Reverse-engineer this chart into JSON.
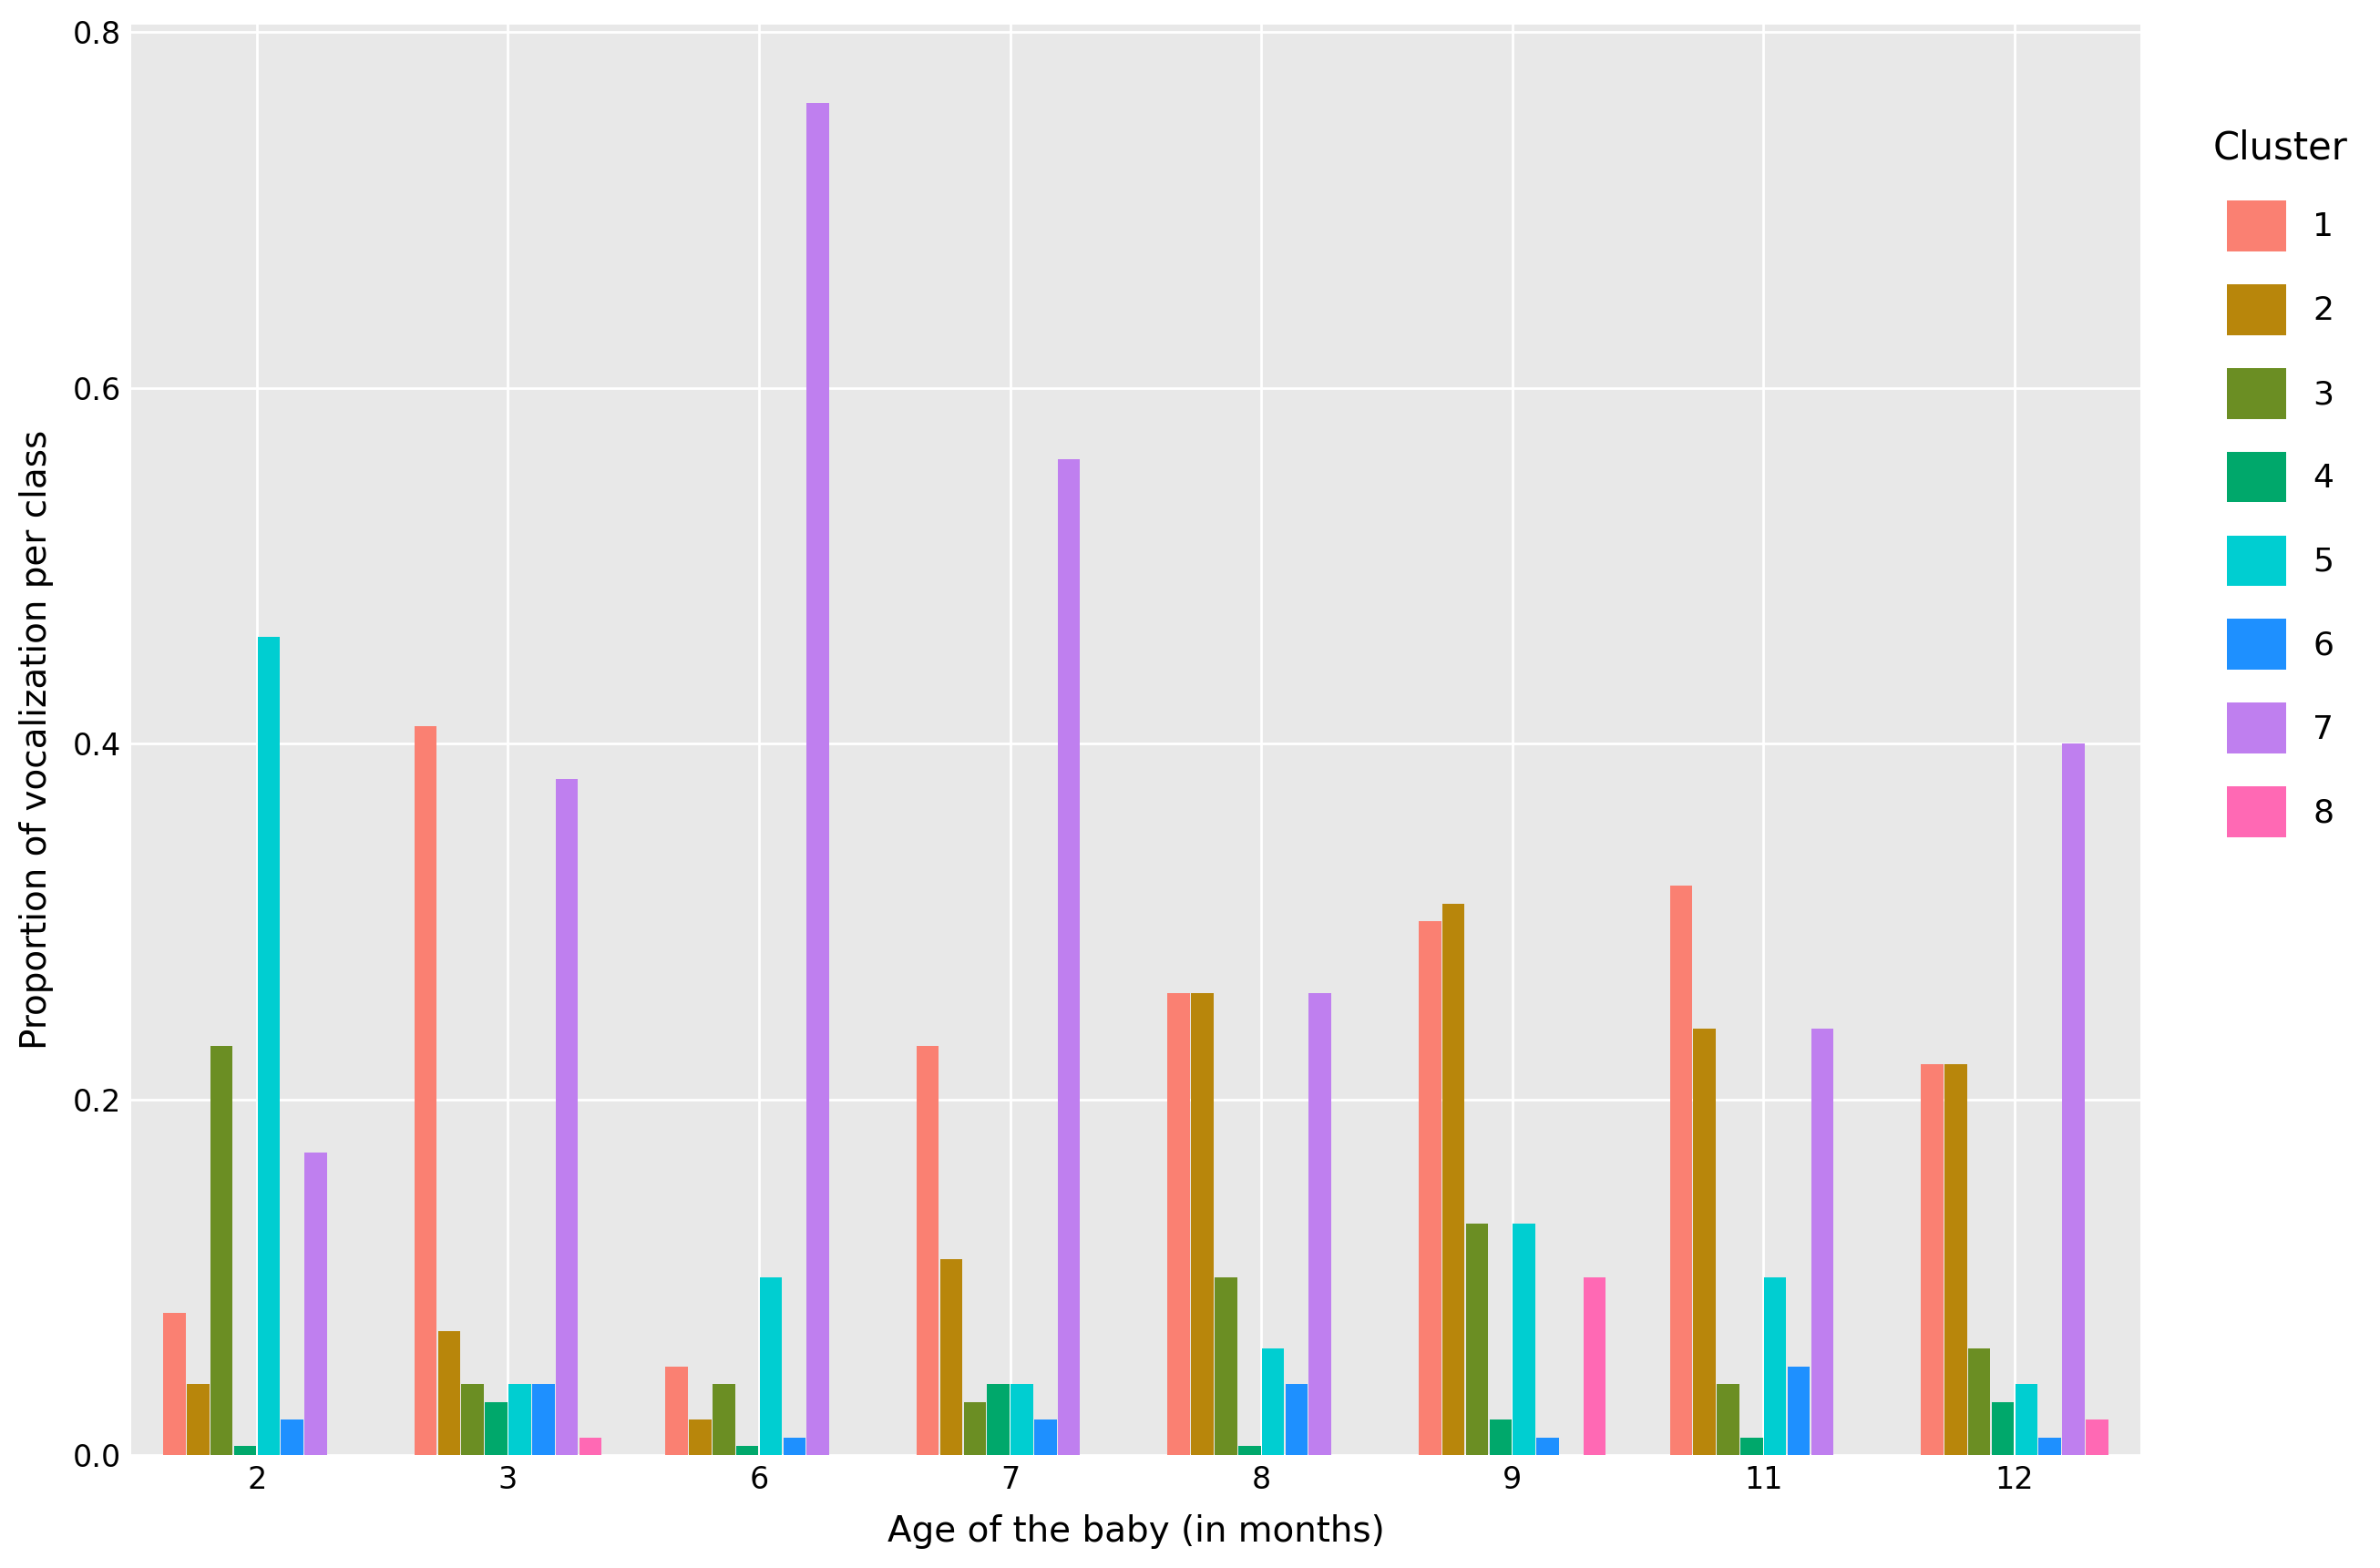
{
  "ages": [
    2,
    3,
    6,
    7,
    8,
    9,
    11,
    12
  ],
  "clusters": [
    "1",
    "2",
    "3",
    "4",
    "5",
    "6",
    "7",
    "8"
  ],
  "colors": {
    "1": "#FA8072",
    "2": "#B8860B",
    "3": "#6B8E23",
    "4": "#00A86B",
    "5": "#00CED1",
    "6": "#1E90FF",
    "7": "#BF7FEF",
    "8": "#FF69B4"
  },
  "data": {
    "2": [
      0.08,
      0.04,
      0.23,
      0.005,
      0.46,
      0.02,
      0.17,
      0.0
    ],
    "3": [
      0.41,
      0.07,
      0.04,
      0.03,
      0.04,
      0.04,
      0.38,
      0.01
    ],
    "6": [
      0.05,
      0.02,
      0.04,
      0.005,
      0.1,
      0.01,
      0.76,
      0.0
    ],
    "7": [
      0.23,
      0.11,
      0.03,
      0.04,
      0.04,
      0.02,
      0.56,
      0.0
    ],
    "8": [
      0.26,
      0.26,
      0.1,
      0.005,
      0.06,
      0.04,
      0.26,
      0.0
    ],
    "9": [
      0.3,
      0.31,
      0.13,
      0.02,
      0.13,
      0.01,
      0.0,
      0.1
    ],
    "11": [
      0.32,
      0.24,
      0.04,
      0.01,
      0.1,
      0.05,
      0.24,
      0.0
    ],
    "12": [
      0.22,
      0.22,
      0.06,
      0.03,
      0.04,
      0.01,
      0.4,
      0.02
    ]
  },
  "ylabel": "Proportion of vocalization per class",
  "xlabel": "Age of the baby (in months)",
  "legend_title": "Cluster",
  "ylim": [
    0.0,
    0.8
  ],
  "yticks": [
    0.0,
    0.2,
    0.4,
    0.6,
    0.8
  ],
  "background_color": "#E8E8E8",
  "grid_color": "#FFFFFF",
  "plot_background": "#E8E8E8"
}
